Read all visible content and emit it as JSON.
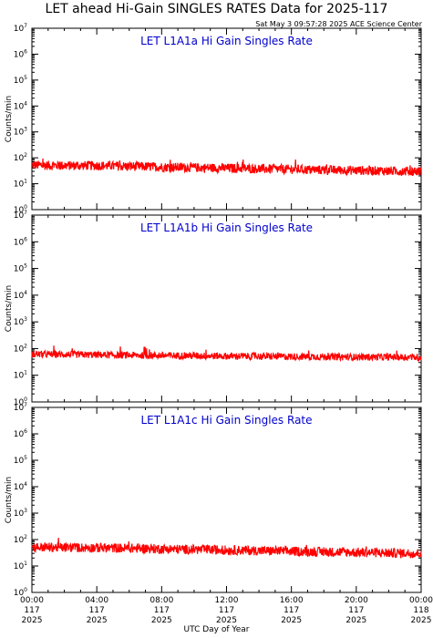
{
  "title": "LET ahead Hi-Gain SINGLES RATES Data for 2025-117",
  "timestamp": "Sat May  3 09:57:28 2025 ACE Science Center",
  "xlabel": "UTC Day of Year",
  "colors": {
    "series": "#ff0000",
    "panel_title": "#0000cc",
    "axes": "#000000"
  },
  "chart_data": [
    {
      "type": "line",
      "title": "LET L1A1a Hi Gain Singles Rate",
      "ylabel": "Counts/min",
      "yscale": "log",
      "ylim": [
        1,
        10000000
      ],
      "ytick_labels": [
        "10^0",
        "10^1",
        "10^2",
        "10^3",
        "10^4",
        "10^5",
        "10^6",
        "10^7"
      ],
      "xlim": [
        0,
        24
      ],
      "x_unit": "hours UTC",
      "start_level": 52,
      "end_level": 30,
      "noise": 0.18,
      "series": [
        {
          "name": "L1A1a",
          "x": [
            0,
            2,
            4,
            6,
            8,
            10,
            12,
            14,
            16,
            18,
            20,
            22,
            24
          ],
          "y": [
            52,
            50,
            50,
            47,
            44,
            42,
            40,
            38,
            36,
            34,
            33,
            31,
            30
          ]
        }
      ]
    },
    {
      "type": "line",
      "title": "LET L1A1b Hi Gain Singles Rate",
      "ylabel": "Counts/min",
      "yscale": "log",
      "ylim": [
        1,
        10000000
      ],
      "ytick_labels": [
        "10^0",
        "10^1",
        "10^2",
        "10^3",
        "10^4",
        "10^5",
        "10^6",
        "10^7"
      ],
      "xlim": [
        0,
        24
      ],
      "x_unit": "hours UTC",
      "start_level": 62,
      "end_level": 47,
      "noise": 0.13,
      "series": [
        {
          "name": "L1A1b",
          "x": [
            0,
            2,
            4,
            6,
            8,
            10,
            12,
            14,
            16,
            18,
            20,
            22,
            24
          ],
          "y": [
            62,
            60,
            58,
            56,
            55,
            54,
            52,
            51,
            50,
            49,
            48,
            48,
            47
          ]
        }
      ]
    },
    {
      "type": "line",
      "title": "LET L1A1c Hi Gain Singles Rate",
      "ylabel": "Counts/min",
      "yscale": "log",
      "ylim": [
        1,
        10000000
      ],
      "ytick_labels": [
        "10^0",
        "10^1",
        "10^2",
        "10^3",
        "10^4",
        "10^5",
        "10^6",
        "10^7"
      ],
      "xlim": [
        0,
        24
      ],
      "x_unit": "hours UTC",
      "start_level": 52,
      "end_level": 30,
      "noise": 0.18,
      "series": [
        {
          "name": "L1A1c",
          "x": [
            0,
            2,
            4,
            6,
            8,
            10,
            12,
            14,
            16,
            18,
            20,
            22,
            24
          ],
          "y": [
            52,
            50,
            49,
            47,
            44,
            42,
            40,
            38,
            36,
            34,
            33,
            31,
            30
          ]
        }
      ]
    }
  ],
  "x_ticks": [
    {
      "time": "00:00",
      "doy": "117",
      "year": "2025"
    },
    {
      "time": "04:00",
      "doy": "117",
      "year": "2025"
    },
    {
      "time": "08:00",
      "doy": "117",
      "year": "2025"
    },
    {
      "time": "12:00",
      "doy": "117",
      "year": "2025"
    },
    {
      "time": "16:00",
      "doy": "117",
      "year": "2025"
    },
    {
      "time": "20:00",
      "doy": "117",
      "year": "2025"
    },
    {
      "time": "00:00",
      "doy": "118",
      "year": "2025"
    }
  ]
}
